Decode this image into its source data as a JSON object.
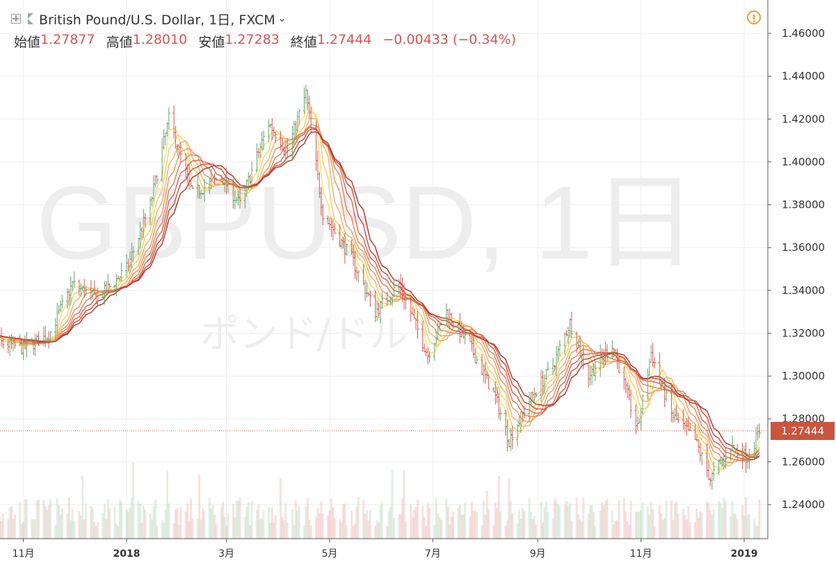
{
  "header": {
    "title": "British Pound/U.S. Dollar, 1日, FXCM",
    "chevron": "⌄",
    "warning": "!"
  },
  "ohlc": {
    "open_label": "始値",
    "open": "1.27877",
    "high_label": "高値",
    "high": "1.28010",
    "low_label": "安値",
    "low": "1.27283",
    "close_label": "終値",
    "close": "1.27444",
    "change": "−0.00433 (−0.34%)"
  },
  "watermark": {
    "symbol": "GBPUSD, 1日",
    "name": "ポンド/ドル"
  },
  "colors": {
    "up": "#5fa56a",
    "down": "#d9534f",
    "price_tag": "#c9553f"
  },
  "chart_data": {
    "type": "candlestick",
    "y_ticks": [
      "1.46000",
      "1.44000",
      "1.42000",
      "1.40000",
      "1.38000",
      "1.36000",
      "1.34000",
      "1.32000",
      "1.30000",
      "1.28000",
      "1.26000",
      "1.24000"
    ],
    "ylim": [
      1.233,
      1.468
    ],
    "x_ticks": [
      "11月",
      "2018",
      "3月",
      "5月",
      "7月",
      "9月",
      "11月",
      "2019"
    ],
    "last_price": "1.27444",
    "close_path": [
      [
        "2017-10-02",
        1.3195
      ],
      [
        "2017-10-16",
        1.316
      ],
      [
        "2017-11-01",
        1.313
      ],
      [
        "2017-11-16",
        1.319
      ],
      [
        "2017-11-30",
        1.343
      ],
      [
        "2017-12-15",
        1.336
      ],
      [
        "2018-01-01",
        1.35
      ],
      [
        "2018-01-15",
        1.38
      ],
      [
        "2018-01-26",
        1.42
      ],
      [
        "2018-02-09",
        1.385
      ],
      [
        "2018-02-26",
        1.393
      ],
      [
        "2018-03-09",
        1.38
      ],
      [
        "2018-03-26",
        1.418
      ],
      [
        "2018-04-06",
        1.405
      ],
      [
        "2018-04-17",
        1.432
      ],
      [
        "2018-04-27",
        1.376
      ],
      [
        "2018-05-14",
        1.355
      ],
      [
        "2018-05-28",
        1.33
      ],
      [
        "2018-06-11",
        1.343
      ],
      [
        "2018-06-28",
        1.31
      ],
      [
        "2018-07-09",
        1.33
      ],
      [
        "2018-07-23",
        1.314
      ],
      [
        "2018-08-07",
        1.29
      ],
      [
        "2018-08-15",
        1.27
      ],
      [
        "2018-08-28",
        1.29
      ],
      [
        "2018-09-10",
        1.305
      ],
      [
        "2018-09-20",
        1.325
      ],
      [
        "2018-10-01",
        1.3
      ],
      [
        "2018-10-15",
        1.315
      ],
      [
        "2018-10-30",
        1.275
      ],
      [
        "2018-11-07",
        1.311
      ],
      [
        "2018-11-19",
        1.282
      ],
      [
        "2018-12-03",
        1.27
      ],
      [
        "2018-12-12",
        1.252
      ],
      [
        "2018-12-24",
        1.267
      ],
      [
        "2019-01-03",
        1.262
      ],
      [
        "2019-01-10",
        1.2744
      ]
    ],
    "ma_count": 8,
    "volume": "per-candle volume bars along the bottom"
  }
}
